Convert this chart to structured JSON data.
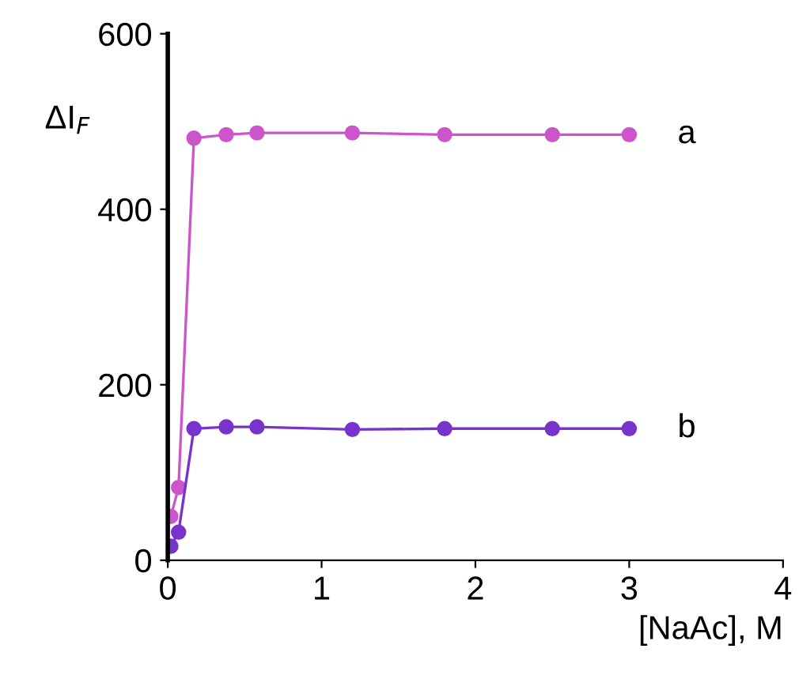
{
  "chart_data": {
    "type": "line",
    "xlabel": "[NaAc], M",
    "ylabel": "ΔI$_{F}$",
    "marker": "circle",
    "line_style": "solid",
    "grid": false,
    "legend": false,
    "x": [
      0.02,
      0.07,
      0.17,
      0.38,
      0.58,
      1.2,
      1.8,
      2.5,
      3.0
    ],
    "series": [
      {
        "name": "a",
        "color": "#cc55cc",
        "values": [
          50,
          83,
          481,
          485,
          487,
          487,
          485,
          485,
          485
        ]
      },
      {
        "name": "b",
        "color": "#7733cc",
        "values": [
          16,
          32,
          150,
          152,
          152,
          149,
          150,
          150,
          150
        ]
      }
    ],
    "xlim": [
      0,
      4
    ],
    "xticks": [
      0,
      1,
      2,
      3,
      4
    ],
    "ylim": [
      0,
      600
    ],
    "yticks": [
      0,
      200,
      400,
      600
    ]
  }
}
